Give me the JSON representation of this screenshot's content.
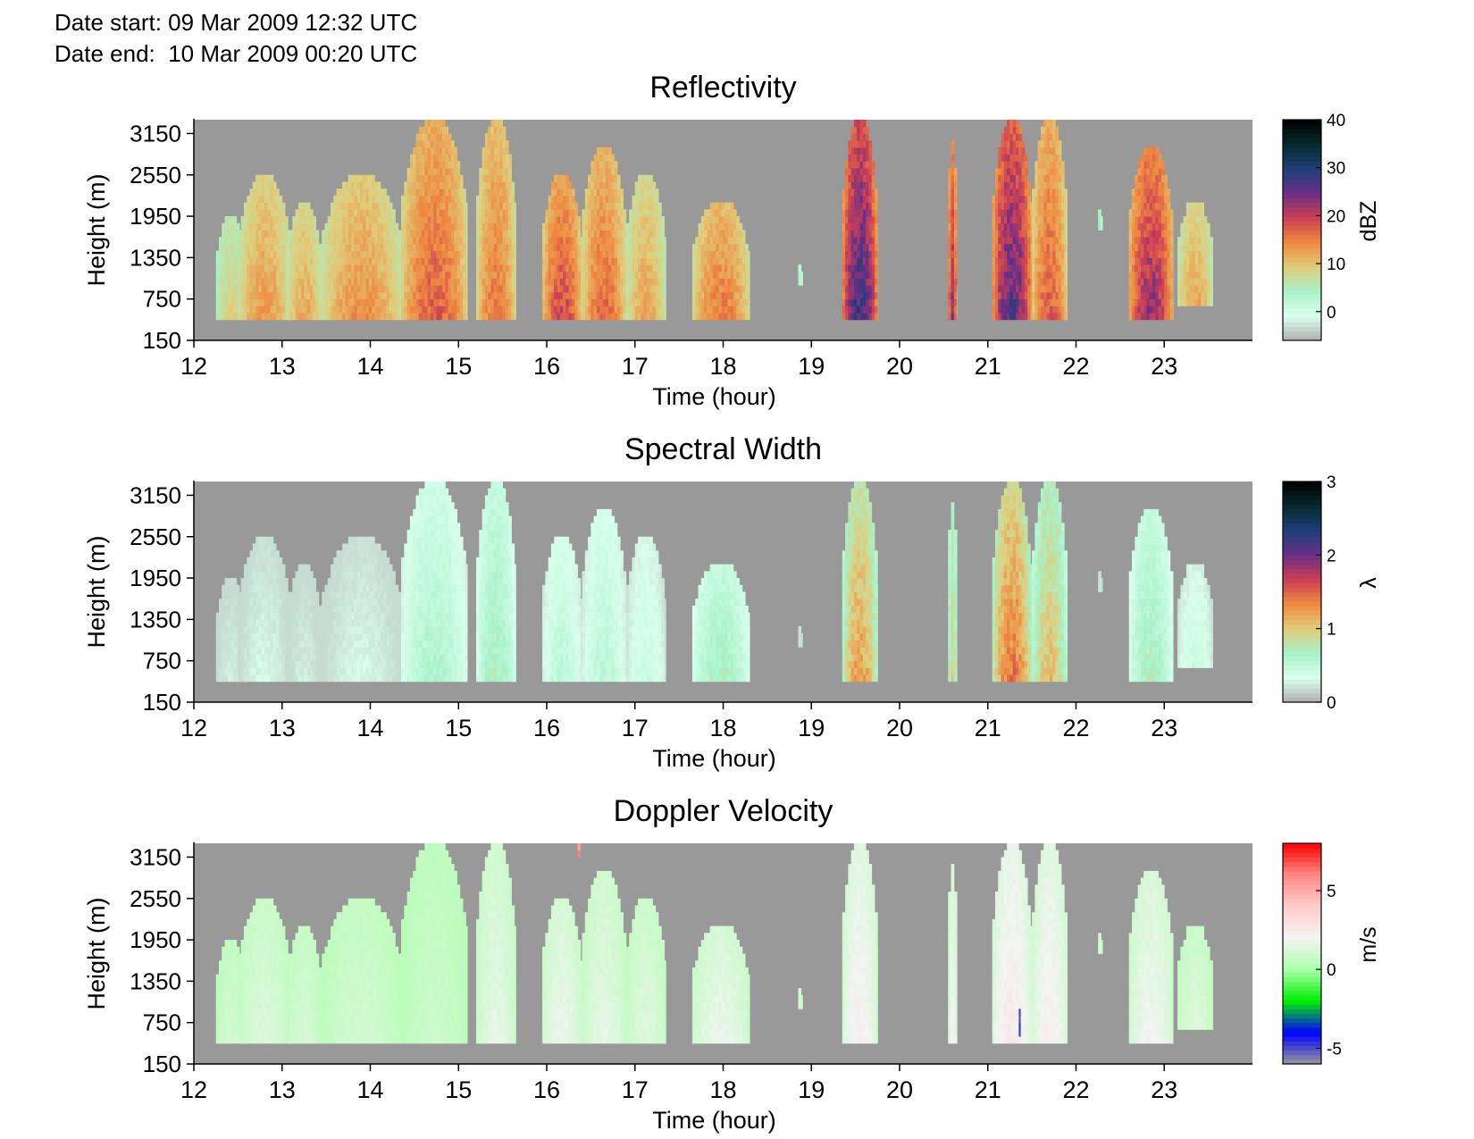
{
  "header": {
    "date_start_label": "Date start:",
    "date_start_value": "09 Mar 2009 12:32 UTC",
    "date_end_label": "Date end:",
    "date_end_value": "10 Mar 2009 00:20 UTC"
  },
  "chart_data": [
    {
      "type": "heatmap",
      "title": "Reflectivity",
      "xlabel": "Time (hour)",
      "ylabel": "Height (m)",
      "xlim": [
        12,
        24
      ],
      "ylim": [
        150,
        3350
      ],
      "x_ticks": [
        12,
        13,
        14,
        15,
        16,
        17,
        18,
        19,
        20,
        21,
        22,
        23
      ],
      "y_ticks": [
        150,
        750,
        1350,
        1950,
        2550,
        3150
      ],
      "colorbar": {
        "label": "dBZ",
        "range": [
          -6,
          40
        ],
        "ticks": [
          0,
          10,
          20,
          30,
          40
        ],
        "colors": [
          "#b0b0b0",
          "#d9ffee",
          "#a8f2c8",
          "#e0cc7a",
          "#ef8a40",
          "#cc3f55",
          "#6b2f86",
          "#1f3f7a",
          "#062a2e",
          "#000000"
        ]
      },
      "background_color": "#999999",
      "echo_segments": [
        {
          "t_start": 12.25,
          "t_end": 12.6,
          "h_base": 450,
          "h_top": 1950,
          "peak_value": 10
        },
        {
          "t_start": 12.5,
          "t_end": 13.1,
          "h_base": 450,
          "h_top": 2550,
          "peak_value": 15
        },
        {
          "t_start": 13.05,
          "t_end": 13.45,
          "h_base": 450,
          "h_top": 2150,
          "peak_value": 14
        },
        {
          "t_start": 13.45,
          "t_end": 14.35,
          "h_base": 450,
          "h_top": 2550,
          "peak_value": 16
        },
        {
          "t_start": 14.35,
          "t_end": 15.1,
          "h_base": 450,
          "h_top": 3350,
          "peak_value": 20
        },
        {
          "t_start": 15.2,
          "t_end": 15.65,
          "h_base": 450,
          "h_top": 3350,
          "peak_value": 18
        },
        {
          "t_start": 15.95,
          "t_end": 16.4,
          "h_base": 450,
          "h_top": 2550,
          "peak_value": 22
        },
        {
          "t_start": 16.4,
          "t_end": 16.9,
          "h_base": 450,
          "h_top": 2950,
          "peak_value": 19
        },
        {
          "t_start": 16.9,
          "t_end": 17.35,
          "h_base": 450,
          "h_top": 2550,
          "peak_value": 14
        },
        {
          "t_start": 17.65,
          "t_end": 18.3,
          "h_base": 450,
          "h_top": 2150,
          "peak_value": 18
        },
        {
          "t_start": 18.85,
          "t_end": 18.9,
          "h_base": 950,
          "h_top": 1250,
          "peak_value": 4
        },
        {
          "t_start": 19.35,
          "t_end": 19.75,
          "h_base": 450,
          "h_top": 3350,
          "peak_value": 32
        },
        {
          "t_start": 20.55,
          "t_end": 20.65,
          "h_base": 450,
          "h_top": 3050,
          "peak_value": 25
        },
        {
          "t_start": 21.05,
          "t_end": 21.5,
          "h_base": 450,
          "h_top": 3350,
          "peak_value": 30
        },
        {
          "t_start": 21.5,
          "t_end": 21.9,
          "h_base": 450,
          "h_top": 3350,
          "peak_value": 20
        },
        {
          "t_start": 22.25,
          "t_end": 22.3,
          "h_base": 1750,
          "h_top": 2050,
          "peak_value": 6
        },
        {
          "t_start": 22.6,
          "t_end": 23.1,
          "h_base": 450,
          "h_top": 2950,
          "peak_value": 26
        },
        {
          "t_start": 23.15,
          "t_end": 23.55,
          "h_base": 650,
          "h_top": 2150,
          "peak_value": 14
        }
      ]
    },
    {
      "type": "heatmap",
      "title": "Spectral Width",
      "xlabel": "Time (hour)",
      "ylabel": "Height (m)",
      "xlim": [
        12,
        24
      ],
      "ylim": [
        150,
        3350
      ],
      "x_ticks": [
        12,
        13,
        14,
        15,
        16,
        17,
        18,
        19,
        20,
        21,
        22,
        23
      ],
      "y_ticks": [
        150,
        750,
        1350,
        1950,
        2550,
        3150
      ],
      "colorbar": {
        "label": "λ",
        "range": [
          0,
          3
        ],
        "ticks": [
          0,
          1,
          2,
          3
        ],
        "colors": [
          "#b0b0b0",
          "#d9ffee",
          "#a8f2c8",
          "#e0cc7a",
          "#ef8a40",
          "#cc3f55",
          "#6b2f86",
          "#1f3f7a",
          "#062a2e",
          "#000000"
        ]
      },
      "background_color": "#999999",
      "echo_segments": [
        {
          "t_start": 12.25,
          "t_end": 12.6,
          "h_base": 450,
          "h_top": 1950,
          "peak_value": 0.3
        },
        {
          "t_start": 12.5,
          "t_end": 13.1,
          "h_base": 450,
          "h_top": 2550,
          "peak_value": 0.35
        },
        {
          "t_start": 13.05,
          "t_end": 13.45,
          "h_base": 450,
          "h_top": 2150,
          "peak_value": 0.3
        },
        {
          "t_start": 13.45,
          "t_end": 14.35,
          "h_base": 450,
          "h_top": 2550,
          "peak_value": 0.35
        },
        {
          "t_start": 14.35,
          "t_end": 15.1,
          "h_base": 450,
          "h_top": 3350,
          "peak_value": 0.7
        },
        {
          "t_start": 15.2,
          "t_end": 15.65,
          "h_base": 450,
          "h_top": 3350,
          "peak_value": 0.8
        },
        {
          "t_start": 15.95,
          "t_end": 16.4,
          "h_base": 450,
          "h_top": 2550,
          "peak_value": 0.6
        },
        {
          "t_start": 16.4,
          "t_end": 16.9,
          "h_base": 450,
          "h_top": 2950,
          "peak_value": 0.6
        },
        {
          "t_start": 16.9,
          "t_end": 17.35,
          "h_base": 450,
          "h_top": 2550,
          "peak_value": 0.5
        },
        {
          "t_start": 17.65,
          "t_end": 18.3,
          "h_base": 450,
          "h_top": 2150,
          "peak_value": 0.8
        },
        {
          "t_start": 18.85,
          "t_end": 18.9,
          "h_base": 950,
          "h_top": 1250,
          "peak_value": 0.3
        },
        {
          "t_start": 19.35,
          "t_end": 19.75,
          "h_base": 450,
          "h_top": 3350,
          "peak_value": 1.4
        },
        {
          "t_start": 20.55,
          "t_end": 20.65,
          "h_base": 450,
          "h_top": 3050,
          "peak_value": 1.1
        },
        {
          "t_start": 21.05,
          "t_end": 21.5,
          "h_base": 450,
          "h_top": 3350,
          "peak_value": 1.6
        },
        {
          "t_start": 21.5,
          "t_end": 21.9,
          "h_base": 450,
          "h_top": 3350,
          "peak_value": 1.2
        },
        {
          "t_start": 22.25,
          "t_end": 22.3,
          "h_base": 1750,
          "h_top": 2050,
          "peak_value": 0.3
        },
        {
          "t_start": 22.6,
          "t_end": 23.1,
          "h_base": 450,
          "h_top": 2950,
          "peak_value": 0.8
        },
        {
          "t_start": 23.15,
          "t_end": 23.55,
          "h_base": 650,
          "h_top": 2150,
          "peak_value": 0.5
        }
      ]
    },
    {
      "type": "heatmap",
      "title": "Doppler Velocity",
      "xlabel": "Time (hour)",
      "ylabel": "Height (m)",
      "xlim": [
        12,
        24
      ],
      "ylim": [
        150,
        3350
      ],
      "x_ticks": [
        12,
        13,
        14,
        15,
        16,
        17,
        18,
        19,
        20,
        21,
        22,
        23
      ],
      "y_ticks": [
        150,
        750,
        1350,
        1950,
        2550,
        3150
      ],
      "colorbar": {
        "label": "m/s",
        "range": [
          -6,
          8
        ],
        "ticks": [
          -5,
          0,
          5
        ],
        "colors": [
          "#999999",
          "#0000ff",
          "#00ee00",
          "#aaffaa",
          "#f4f4f4",
          "#ffcccc",
          "#ff8888",
          "#ff0000"
        ]
      },
      "background_color": "#999999",
      "echo_segments": [
        {
          "t_start": 12.25,
          "t_end": 12.6,
          "h_base": 450,
          "h_top": 1950,
          "peak_value": 1.2
        },
        {
          "t_start": 12.5,
          "t_end": 13.1,
          "h_base": 450,
          "h_top": 2550,
          "peak_value": 1.5
        },
        {
          "t_start": 13.05,
          "t_end": 13.45,
          "h_base": 450,
          "h_top": 2150,
          "peak_value": 1.3
        },
        {
          "t_start": 13.45,
          "t_end": 14.35,
          "h_base": 450,
          "h_top": 2550,
          "peak_value": 1.2
        },
        {
          "t_start": 14.35,
          "t_end": 15.1,
          "h_base": 450,
          "h_top": 3350,
          "peak_value": 1.0
        },
        {
          "t_start": 15.2,
          "t_end": 15.65,
          "h_base": 450,
          "h_top": 3350,
          "peak_value": 1.8
        },
        {
          "t_start": 15.95,
          "t_end": 16.4,
          "h_base": 450,
          "h_top": 2550,
          "peak_value": 2.0
        },
        {
          "t_start": 16.4,
          "t_end": 16.9,
          "h_base": 450,
          "h_top": 2950,
          "peak_value": 1.8
        },
        {
          "t_start": 16.9,
          "t_end": 17.35,
          "h_base": 450,
          "h_top": 2550,
          "peak_value": 1.6
        },
        {
          "t_start": 17.65,
          "t_end": 18.3,
          "h_base": 450,
          "h_top": 2150,
          "peak_value": 2.0
        },
        {
          "t_start": 18.85,
          "t_end": 18.9,
          "h_base": 950,
          "h_top": 1250,
          "peak_value": 1.5
        },
        {
          "t_start": 19.35,
          "t_end": 19.75,
          "h_base": 450,
          "h_top": 3350,
          "peak_value": 2.5
        },
        {
          "t_start": 20.55,
          "t_end": 20.65,
          "h_base": 450,
          "h_top": 3050,
          "peak_value": 2.2
        },
        {
          "t_start": 21.05,
          "t_end": 21.5,
          "h_base": 450,
          "h_top": 3350,
          "peak_value": 2.8
        },
        {
          "t_start": 21.5,
          "t_end": 21.9,
          "h_base": 450,
          "h_top": 3350,
          "peak_value": 2.5
        },
        {
          "t_start": 22.25,
          "t_end": 22.3,
          "h_base": 1750,
          "h_top": 2050,
          "peak_value": 1.5
        },
        {
          "t_start": 22.6,
          "t_end": 23.1,
          "h_base": 450,
          "h_top": 2950,
          "peak_value": 2.2
        },
        {
          "t_start": 23.15,
          "t_end": 23.55,
          "h_base": 650,
          "h_top": 2150,
          "peak_value": 1.5
        },
        {
          "t_start": 16.35,
          "t_end": 16.38,
          "h_base": 3150,
          "h_top": 3350,
          "peak_value": 6.5
        },
        {
          "t_start": 21.35,
          "t_end": 21.37,
          "h_base": 550,
          "h_top": 950,
          "peak_value": -5.5
        }
      ]
    }
  ]
}
